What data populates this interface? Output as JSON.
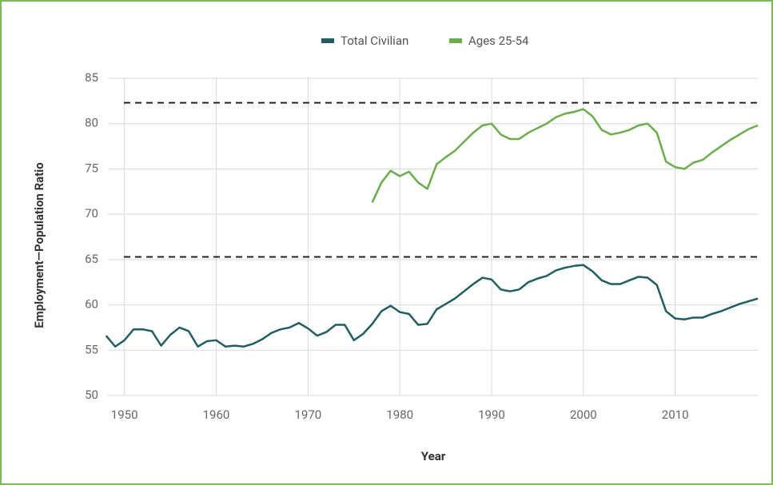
{
  "chart_data": {
    "type": "line",
    "x_label": "Year",
    "y_label": "Employment—Population Ratio",
    "x": [
      1948,
      1949,
      1950,
      1951,
      1952,
      1953,
      1954,
      1955,
      1956,
      1957,
      1958,
      1959,
      1960,
      1961,
      1962,
      1963,
      1964,
      1965,
      1966,
      1967,
      1968,
      1969,
      1970,
      1971,
      1972,
      1973,
      1974,
      1975,
      1976,
      1977,
      1978,
      1979,
      1980,
      1981,
      1982,
      1983,
      1984,
      1985,
      1986,
      1987,
      1988,
      1989,
      1990,
      1991,
      1992,
      1993,
      1994,
      1995,
      1996,
      1997,
      1998,
      1999,
      2000,
      2001,
      2002,
      2003,
      2004,
      2005,
      2006,
      2007,
      2008,
      2009,
      2010,
      2011,
      2012,
      2013,
      2014,
      2015,
      2016,
      2017,
      2018,
      2019
    ],
    "series": [
      {
        "name": "Total Civilian",
        "color": "#1f5e63",
        "values": [
          56.6,
          55.4,
          56.1,
          57.3,
          57.3,
          57.1,
          55.5,
          56.7,
          57.5,
          57.1,
          55.4,
          56.0,
          56.1,
          55.4,
          55.5,
          55.4,
          55.7,
          56.2,
          56.9,
          57.3,
          57.5,
          58.0,
          57.4,
          56.6,
          57.0,
          57.8,
          57.8,
          56.1,
          56.8,
          57.9,
          59.3,
          59.9,
          59.2,
          59.0,
          57.8,
          57.9,
          59.5,
          60.1,
          60.7,
          61.5,
          62.3,
          63.0,
          62.8,
          61.7,
          61.5,
          61.7,
          62.5,
          62.9,
          63.2,
          63.8,
          64.1,
          64.3,
          64.4,
          63.7,
          62.7,
          62.3,
          62.3,
          62.7,
          63.1,
          63.0,
          62.2,
          59.3,
          58.5,
          58.4,
          58.6,
          58.6,
          59.0,
          59.3,
          59.7,
          60.1,
          60.4,
          60.7
        ]
      },
      {
        "name": "Ages 25-54",
        "color": "#6aad4b",
        "values": [
          null,
          null,
          null,
          null,
          null,
          null,
          null,
          null,
          null,
          null,
          null,
          null,
          null,
          null,
          null,
          null,
          null,
          null,
          null,
          null,
          null,
          null,
          null,
          null,
          null,
          null,
          null,
          null,
          null,
          71.3,
          73.5,
          74.8,
          74.2,
          74.7,
          73.5,
          72.8,
          75.5,
          76.3,
          77.0,
          78.0,
          79.0,
          79.8,
          80.0,
          78.8,
          78.3,
          78.3,
          79.0,
          79.5,
          80.0,
          80.7,
          81.1,
          81.3,
          81.6,
          80.8,
          79.3,
          78.8,
          79.0,
          79.3,
          79.8,
          80.0,
          79.0,
          75.8,
          75.2,
          75.0,
          75.7,
          76.0,
          76.8,
          77.5,
          78.2,
          78.8,
          79.4,
          79.8
        ]
      }
    ],
    "reference_lines": [
      82.3,
      65.3
    ],
    "xlim": [
      1948.2,
      2019
    ],
    "xticks": [
      1950,
      1960,
      1970,
      1980,
      1990,
      2000,
      2010
    ],
    "ylim": [
      50,
      85
    ],
    "yticks": [
      50,
      55,
      60,
      65,
      70,
      75,
      80,
      85
    ],
    "grid": true,
    "legend": "top"
  }
}
